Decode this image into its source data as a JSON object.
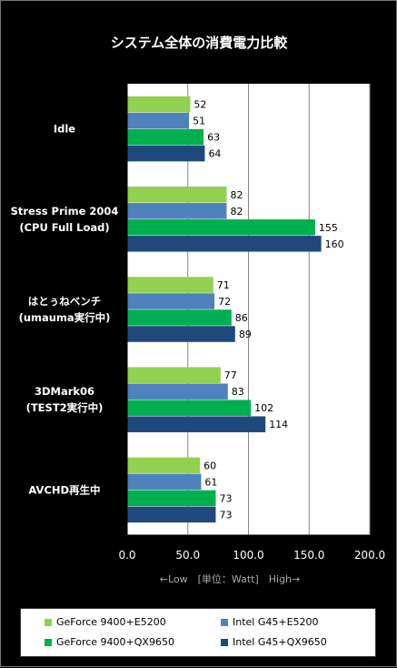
{
  "chart_data": {
    "type": "bar",
    "orientation": "horizontal",
    "title": "システム全体の消費電力比較",
    "categories": [
      [
        "Idle"
      ],
      [
        "Stress Prime 2004",
        "(CPU Full Load)"
      ],
      [
        "はとぅねベンチ",
        "(umauma実行中)"
      ],
      [
        "3DMark06",
        "(TEST2実行中)"
      ],
      [
        "AVCHD再生中"
      ]
    ],
    "series": [
      {
        "name": "GeForce 9400+E5200",
        "color": "#92D050",
        "values": [
          52,
          82,
          71,
          77,
          60
        ]
      },
      {
        "name": "Intel G45+E5200",
        "color": "#4F81BD",
        "values": [
          51,
          82,
          72,
          83,
          61
        ]
      },
      {
        "name": "GeForce 9400+QX9650",
        "color": "#00B050",
        "values": [
          63,
          155,
          86,
          102,
          73
        ]
      },
      {
        "name": "Intel G45+QX9650",
        "color": "#1F497D",
        "values": [
          64,
          160,
          89,
          114,
          73
        ]
      }
    ],
    "xlim": [
      0,
      200
    ],
    "xticks": [
      "0.0",
      "50.0",
      "100.0",
      "150.0",
      "200.0"
    ],
    "xlabel": "←Low　[単位：Watt]　High→",
    "grid": true,
    "legend_position": "bottom"
  }
}
